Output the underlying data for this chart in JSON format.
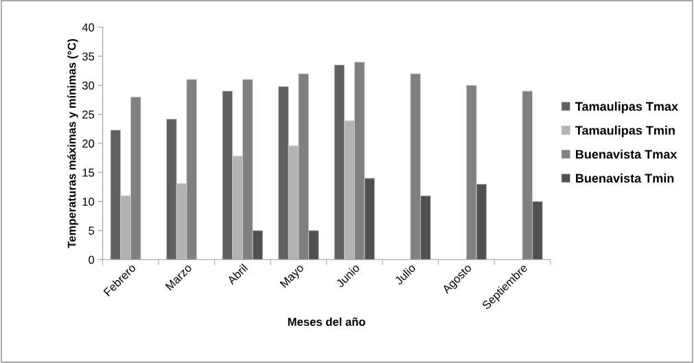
{
  "chart_data": {
    "type": "bar",
    "xlabel": "Meses del año",
    "ylabel": "Temperaturas máximas y mínimas (°C)",
    "categories": [
      "Febrero",
      "Marzo",
      "Abril",
      "Mayo",
      "Junio",
      "Julio",
      "Agosto",
      "Septiembre"
    ],
    "series": [
      {
        "name": "Tamaulipas Tmax",
        "color": "#606060",
        "values": [
          22.3,
          24.2,
          29,
          29.8,
          33.5,
          null,
          null,
          null
        ]
      },
      {
        "name": "Tamaulipas Tmin",
        "color": "#b3b3b3",
        "values": [
          11,
          13.1,
          17.8,
          19.6,
          23.9,
          null,
          null,
          null
        ]
      },
      {
        "name": "Buenavista Tmax",
        "color": "#808080",
        "values": [
          28,
          31,
          31,
          32,
          34,
          32,
          30,
          29
        ]
      },
      {
        "name": "Buenavista Tmin",
        "color": "#505050",
        "values": [
          null,
          null,
          5,
          5,
          14,
          11,
          13,
          10
        ]
      }
    ],
    "ylim": [
      0,
      40
    ],
    "yticks": [
      0,
      5,
      10,
      15,
      20,
      25,
      30,
      35,
      40
    ],
    "grid": false,
    "legend": "right"
  }
}
